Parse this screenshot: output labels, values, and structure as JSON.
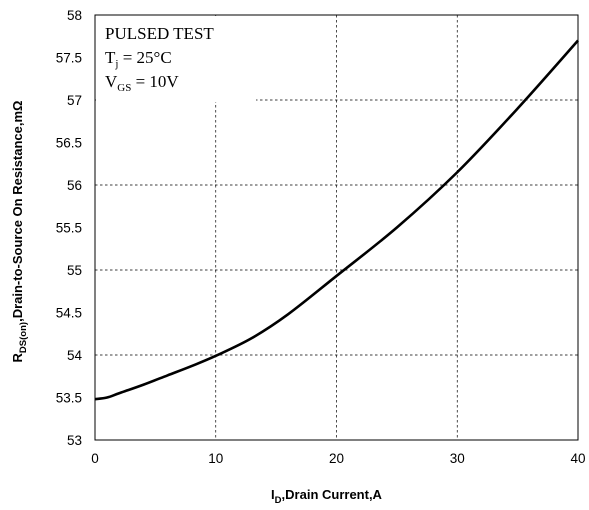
{
  "chart_data": {
    "type": "line",
    "title": "",
    "xlabel": {
      "main": "I",
      "sub": "D",
      "rest": ",Drain  Current,A"
    },
    "ylabel": {
      "main": "R",
      "sub": "DS(on)",
      "rest": ",Drain-to-Source On Resistance,mΩ"
    },
    "xlim": [
      0,
      40
    ],
    "ylim": [
      53,
      58
    ],
    "x_ticks": [
      0,
      10,
      20,
      30,
      40
    ],
    "y_ticks": [
      53,
      53.5,
      54,
      54.5,
      55,
      55.5,
      56,
      56.5,
      57,
      57.5,
      58
    ],
    "x_tick_labels": [
      "0",
      "10",
      "20",
      "30",
      "40"
    ],
    "y_tick_labels": [
      "53",
      "53.5",
      "54",
      "54.5",
      "55",
      "55.5",
      "56",
      "56.5",
      "57",
      "57.5",
      "58"
    ],
    "grid": true,
    "annotations": {
      "line1": "PULSED TEST",
      "line2_main": "T",
      "line2_sub": "j",
      "line2_rest": " = 25°C",
      "line3_main": "V",
      "line3_sub": "GS",
      "line3_rest": " = 10V"
    },
    "series": [
      {
        "x": [
          0,
          1,
          2,
          4,
          6,
          8,
          10,
          13,
          16,
          20,
          25,
          30,
          35,
          40
        ],
        "y": [
          53.48,
          53.5,
          53.55,
          53.65,
          53.76,
          53.87,
          53.99,
          54.2,
          54.48,
          54.93,
          55.5,
          56.15,
          56.9,
          57.7
        ]
      }
    ]
  }
}
